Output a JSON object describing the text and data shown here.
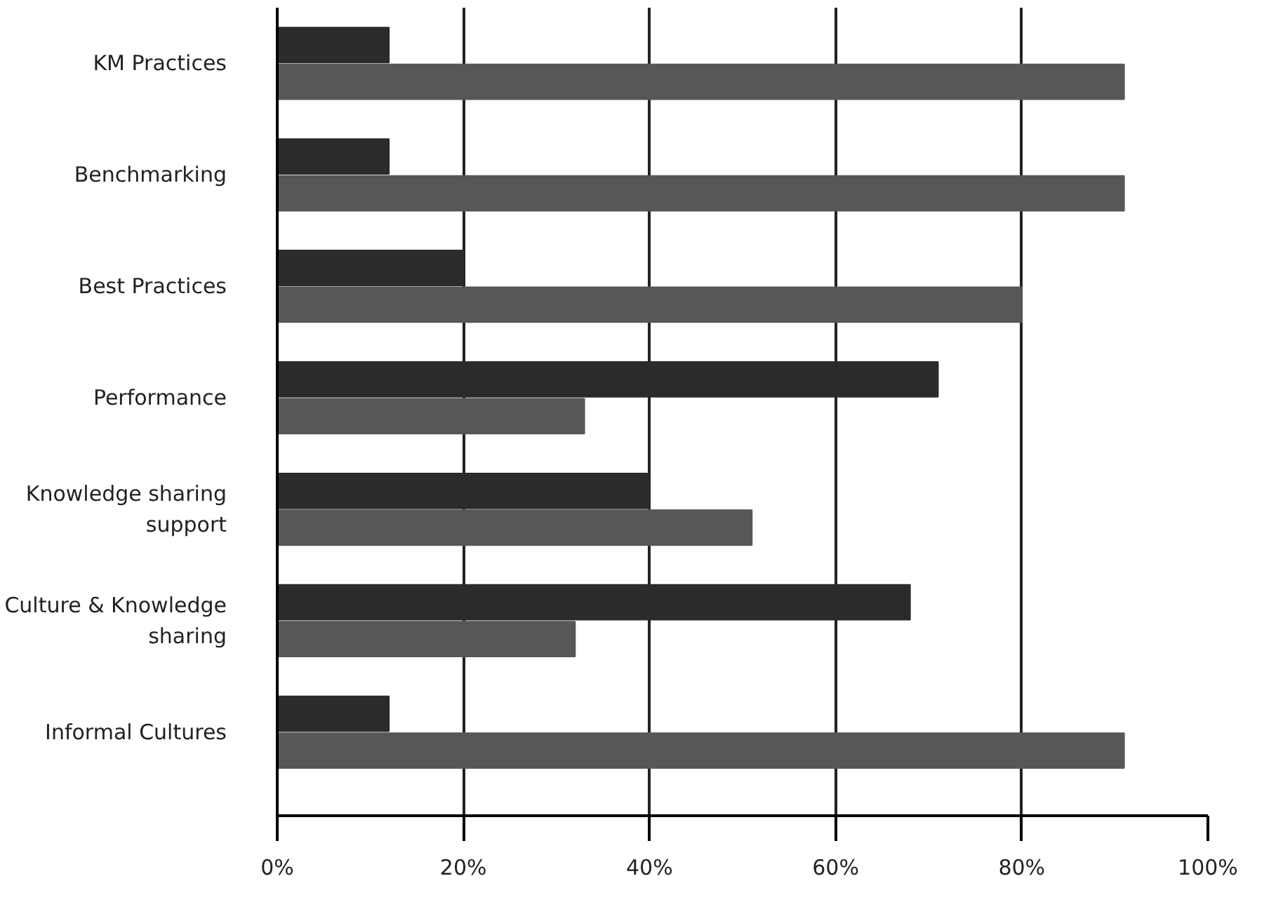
{
  "chart_data": {
    "type": "bar",
    "orientation": "horizontal",
    "categories": [
      "KM Practices",
      "Benchmarking",
      "Best Practices",
      "Performance",
      "Knowledge sharing support",
      "Culture & Knowledge sharing",
      "Informal Cultures"
    ],
    "series": [
      {
        "color": "#2b2b2b",
        "values": [
          12,
          12,
          20,
          71,
          40,
          68,
          12
        ]
      },
      {
        "color": "#575757",
        "values": [
          91,
          91,
          80,
          33,
          51,
          32,
          91
        ]
      }
    ],
    "xlim": [
      0,
      100
    ],
    "xticks": [
      {
        "value": 0,
        "label": "0%"
      },
      {
        "value": 20,
        "label": "20%"
      },
      {
        "value": 40,
        "label": "40%"
      },
      {
        "value": 60,
        "label": "60%"
      },
      {
        "value": 80,
        "label": "80%"
      },
      {
        "value": 100,
        "label": "100%"
      }
    ],
    "grid": "x"
  }
}
